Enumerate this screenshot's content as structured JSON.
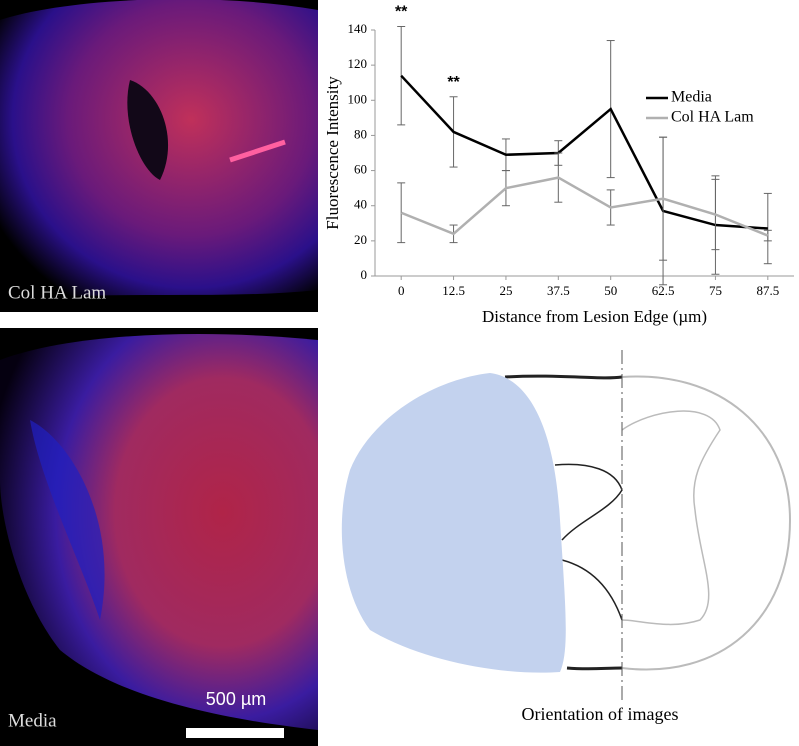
{
  "images": [
    {
      "label": "Col HA Lam"
    },
    {
      "label": "Media",
      "scale_bar": "500 µm"
    }
  ],
  "chart_data": {
    "type": "line",
    "ylabel": "Fluorescence Intensity",
    "xlabel": "Distance from Lesion Edge (µm)",
    "x": [
      0,
      12.5,
      25,
      37.5,
      50,
      62.5,
      75,
      87.5
    ],
    "xlim": [
      -6.25,
      93.75
    ],
    "xticks": [
      0,
      12.5,
      25,
      37.5,
      50,
      62.5,
      75,
      87.5
    ],
    "ylim": [
      0,
      140
    ],
    "yticks": [
      0,
      20,
      40,
      60,
      80,
      100,
      120,
      140
    ],
    "series": [
      {
        "name": "Media",
        "color": "#000000",
        "values": [
          114,
          82,
          69,
          70,
          95,
          37,
          29,
          27
        ],
        "errors": [
          28,
          20,
          9,
          7,
          39,
          42,
          28,
          20
        ]
      },
      {
        "name": "Col HA Lam",
        "color": "#b0b0b0",
        "values": [
          36,
          24,
          50,
          56,
          39,
          44,
          35,
          23
        ],
        "errors": [
          17,
          5,
          10,
          14,
          10,
          35,
          20,
          3
        ]
      }
    ],
    "annotations": [
      {
        "x": 0,
        "text": "**"
      },
      {
        "x": 12.5,
        "text": "**"
      }
    ]
  },
  "diagram": {
    "caption": "Orientation of images"
  }
}
